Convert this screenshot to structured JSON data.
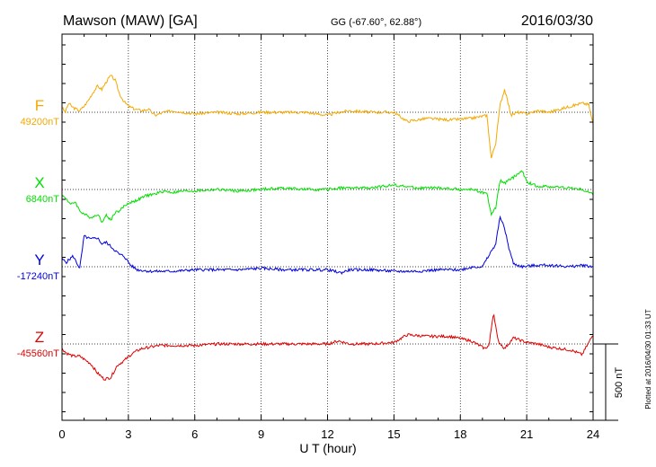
{
  "header": {
    "station": "Mawson (MAW)  [GA]",
    "coords": "GG (-67.60°,  62.88°)",
    "date": "2016/03/30"
  },
  "footer": {
    "plotted": "Plotted at 2016/04/30 01:33 UT"
  },
  "scale": {
    "label": "500 nT"
  },
  "chart_data": {
    "type": "line",
    "xlabel": "U T (hour)",
    "xlim": [
      0,
      24
    ],
    "xticks": [
      0,
      3,
      6,
      9,
      12,
      15,
      18,
      21,
      24
    ],
    "grid": true,
    "scale_bar_nT": 500,
    "series": [
      {
        "name": "F",
        "baseline_label": "49200nT",
        "color": "#f5a800",
        "points": [
          [
            0,
            30
          ],
          [
            0.15,
            0
          ],
          [
            0.3,
            60
          ],
          [
            0.5,
            30
          ],
          [
            0.8,
            10
          ],
          [
            1.0,
            40
          ],
          [
            1.2,
            80
          ],
          [
            1.4,
            130
          ],
          [
            1.6,
            170
          ],
          [
            1.8,
            150
          ],
          [
            2.0,
            200
          ],
          [
            2.2,
            240
          ],
          [
            2.4,
            210
          ],
          [
            2.6,
            120
          ],
          [
            2.8,
            70
          ],
          [
            3.0,
            40
          ],
          [
            3.3,
            20
          ],
          [
            3.6,
            10
          ],
          [
            3.9,
            20
          ],
          [
            4.2,
            -20
          ],
          [
            4.6,
            0
          ],
          [
            5.0,
            10
          ],
          [
            5.5,
            0
          ],
          [
            6.0,
            -10
          ],
          [
            7.0,
            0
          ],
          [
            8.0,
            -10
          ],
          [
            9.0,
            0
          ],
          [
            10.0,
            0
          ],
          [
            11.0,
            0
          ],
          [
            12.0,
            -20
          ],
          [
            12.5,
            0
          ],
          [
            13.0,
            10
          ],
          [
            14.0,
            0
          ],
          [
            15.0,
            0
          ],
          [
            15.6,
            -60
          ],
          [
            16.5,
            -40
          ],
          [
            17.5,
            -50
          ],
          [
            18.5,
            -40
          ],
          [
            19.2,
            -20
          ],
          [
            19.4,
            -300
          ],
          [
            19.6,
            -200
          ],
          [
            19.8,
            50
          ],
          [
            20.0,
            150
          ],
          [
            20.3,
            -20
          ],
          [
            20.6,
            0
          ],
          [
            21.0,
            -10
          ],
          [
            21.5,
            10
          ],
          [
            22.0,
            0
          ],
          [
            22.5,
            20
          ],
          [
            23.0,
            40
          ],
          [
            23.5,
            60
          ],
          [
            23.8,
            50
          ],
          [
            24,
            -80
          ]
        ]
      },
      {
        "name": "X",
        "baseline_label": "6840nT",
        "color": "#00e000",
        "points": [
          [
            0,
            -40
          ],
          [
            0.2,
            -60
          ],
          [
            0.4,
            -100
          ],
          [
            0.6,
            -80
          ],
          [
            0.8,
            -140
          ],
          [
            1.0,
            -160
          ],
          [
            1.2,
            -180
          ],
          [
            1.4,
            -180
          ],
          [
            1.6,
            -160
          ],
          [
            1.8,
            -210
          ],
          [
            2.0,
            -170
          ],
          [
            2.2,
            -200
          ],
          [
            2.4,
            -150
          ],
          [
            2.6,
            -140
          ],
          [
            2.8,
            -110
          ],
          [
            3.0,
            -90
          ],
          [
            3.4,
            -70
          ],
          [
            3.8,
            -40
          ],
          [
            4.2,
            -30
          ],
          [
            4.6,
            -10
          ],
          [
            5.0,
            -20
          ],
          [
            5.5,
            -10
          ],
          [
            6.0,
            -10
          ],
          [
            7.0,
            0
          ],
          [
            8.0,
            -10
          ],
          [
            9.0,
            0
          ],
          [
            10.0,
            10
          ],
          [
            11.0,
            0
          ],
          [
            12.0,
            0
          ],
          [
            12.5,
            10
          ],
          [
            13.0,
            10
          ],
          [
            14.0,
            10
          ],
          [
            15.0,
            30
          ],
          [
            16.0,
            10
          ],
          [
            17.0,
            10
          ],
          [
            18.0,
            0
          ],
          [
            18.6,
            0
          ],
          [
            19.2,
            -30
          ],
          [
            19.4,
            -160
          ],
          [
            19.6,
            -120
          ],
          [
            19.8,
            60
          ],
          [
            20.0,
            40
          ],
          [
            20.4,
            80
          ],
          [
            20.8,
            120
          ],
          [
            21.0,
            50
          ],
          [
            21.5,
            20
          ],
          [
            22.0,
            20
          ],
          [
            23.0,
            10
          ],
          [
            23.5,
            0
          ],
          [
            24,
            -30
          ]
        ]
      },
      {
        "name": "Y",
        "baseline_label": "-17240nT",
        "color": "#0000e0",
        "points": [
          [
            0,
            50
          ],
          [
            0.2,
            30
          ],
          [
            0.5,
            70
          ],
          [
            0.8,
            -10
          ],
          [
            1.0,
            200
          ],
          [
            1.3,
            180
          ],
          [
            1.6,
            190
          ],
          [
            1.8,
            150
          ],
          [
            2.0,
            160
          ],
          [
            2.3,
            120
          ],
          [
            2.6,
            80
          ],
          [
            2.8,
            70
          ],
          [
            3.1,
            10
          ],
          [
            3.4,
            -20
          ],
          [
            4.0,
            -30
          ],
          [
            5.0,
            -30
          ],
          [
            6.0,
            -20
          ],
          [
            7.0,
            -20
          ],
          [
            8.0,
            -20
          ],
          [
            9.0,
            -10
          ],
          [
            10.0,
            -20
          ],
          [
            11.0,
            -20
          ],
          [
            12.0,
            -20
          ],
          [
            12.6,
            -40
          ],
          [
            13.0,
            -20
          ],
          [
            14.0,
            -20
          ],
          [
            15.0,
            -30
          ],
          [
            16.0,
            -30
          ],
          [
            17.0,
            -20
          ],
          [
            18.0,
            -20
          ],
          [
            18.6,
            0
          ],
          [
            19.0,
            0
          ],
          [
            19.4,
            100
          ],
          [
            19.6,
            150
          ],
          [
            19.8,
            330
          ],
          [
            20.0,
            250
          ],
          [
            20.2,
            120
          ],
          [
            20.4,
            20
          ],
          [
            20.8,
            0
          ],
          [
            21.5,
            10
          ],
          [
            22.0,
            10
          ],
          [
            23.0,
            0
          ],
          [
            23.5,
            10
          ],
          [
            24,
            0
          ]
        ]
      },
      {
        "name": "Z",
        "baseline_label": "-45560nT",
        "color": "#e00000",
        "points": [
          [
            0,
            -30
          ],
          [
            0.2,
            -60
          ],
          [
            0.5,
            -80
          ],
          [
            0.8,
            -80
          ],
          [
            1.0,
            -100
          ],
          [
            1.3,
            -130
          ],
          [
            1.6,
            -190
          ],
          [
            1.9,
            -230
          ],
          [
            2.2,
            -220
          ],
          [
            2.5,
            -140
          ],
          [
            2.8,
            -110
          ],
          [
            3.2,
            -60
          ],
          [
            3.6,
            -30
          ],
          [
            4.0,
            -20
          ],
          [
            4.4,
            -10
          ],
          [
            5.0,
            -10
          ],
          [
            6.0,
            -10
          ],
          [
            7.0,
            0
          ],
          [
            8.0,
            0
          ],
          [
            9.0,
            0
          ],
          [
            10.0,
            0
          ],
          [
            11.0,
            0
          ],
          [
            12.0,
            0
          ],
          [
            12.5,
            20
          ],
          [
            13.0,
            0
          ],
          [
            14.0,
            0
          ],
          [
            15.0,
            10
          ],
          [
            15.6,
            60
          ],
          [
            16.5,
            50
          ],
          [
            17.5,
            50
          ],
          [
            18.5,
            20
          ],
          [
            19.1,
            -30
          ],
          [
            19.3,
            -10
          ],
          [
            19.5,
            210
          ],
          [
            19.7,
            20
          ],
          [
            20.0,
            -30
          ],
          [
            20.4,
            40
          ],
          [
            21.0,
            10
          ],
          [
            21.5,
            0
          ],
          [
            22.0,
            -20
          ],
          [
            23.0,
            -40
          ],
          [
            23.5,
            -70
          ],
          [
            24,
            60
          ]
        ]
      }
    ]
  }
}
